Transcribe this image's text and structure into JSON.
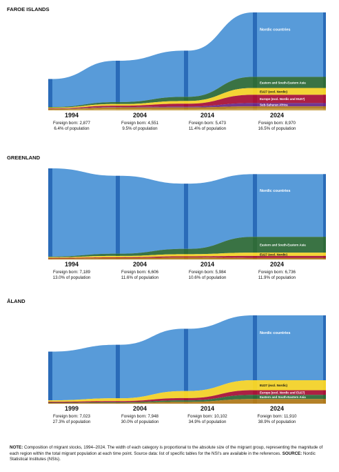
{
  "colors": {
    "nordic": "#4a92d6",
    "nordic_bar": "#2a6bb8",
    "asia": "#2f6b3a",
    "eu27": "#f2d22a",
    "europe": "#a8143a",
    "africa": "#6a2c8c",
    "other1": "#b07a1c",
    "other2": "#c9a24a"
  },
  "chart_data": [
    {
      "type": "sankey",
      "title": "FAROE ISLANDS",
      "periods": [
        {
          "year": "1994",
          "born": "Foreign born: 2,877",
          "pct": "6.4% of population"
        },
        {
          "year": "2004",
          "born": "Foreign born: 4,551",
          "pct": "9.5% of population"
        },
        {
          "year": "2014",
          "born": "Foreign born: 5,473",
          "pct": "11.4% of population"
        },
        {
          "year": "2024",
          "born": "Foreign born: 8,970",
          "pct": "16.5% of population"
        }
      ],
      "series": [
        {
          "name": "Nordic countries",
          "key": "nordic",
          "values": [
            2560,
            3790,
            4230,
            5900
          ]
        },
        {
          "name": "Eastern and South-Eastern Asia",
          "key": "asia",
          "values": [
            60,
            180,
            380,
            1020
          ]
        },
        {
          "name": "EU27 (excl. Nordic)",
          "key": "eu27",
          "values": [
            70,
            150,
            250,
            620
          ]
        },
        {
          "name": "Europe (excl. Nordic and EU27)",
          "key": "europe",
          "values": [
            40,
            120,
            260,
            760
          ]
        },
        {
          "name": "Sub-Saharan Africa",
          "key": "africa",
          "values": [
            20,
            40,
            80,
            300
          ]
        },
        {
          "name": "",
          "key": "other1",
          "values": [
            70,
            160,
            170,
            230
          ]
        },
        {
          "name": "",
          "key": "other2",
          "values": [
            57,
            111,
            103,
            140
          ]
        }
      ]
    },
    {
      "type": "sankey",
      "title": "GREENLAND",
      "periods": [
        {
          "year": "1994",
          "born": "Foreign born: 7,189",
          "pct": "13.0% of population"
        },
        {
          "year": "2004",
          "born": "Foreign born: 6,606",
          "pct": "11.6% of population"
        },
        {
          "year": "2014",
          "born": "Foreign born: 5,984",
          "pct": "10.6% of population"
        },
        {
          "year": "2024",
          "born": "Foreign born: 6,736",
          "pct": "11.9% of population"
        }
      ],
      "series": [
        {
          "name": "Nordic countries",
          "key": "nordic",
          "values": [
            6960,
            6150,
            5150,
            4950
          ]
        },
        {
          "name": "Eastern and South-Eastern Asia",
          "key": "asia",
          "values": [
            50,
            180,
            420,
            1250
          ]
        },
        {
          "name": "EU27 (excl. Nordic)",
          "key": "eu27",
          "values": [
            60,
            110,
            170,
            260
          ]
        },
        {
          "name": "",
          "key": "europe",
          "values": [
            40,
            60,
            90,
            160
          ]
        },
        {
          "name": "",
          "key": "other1",
          "values": [
            79,
            106,
            154,
            116
          ]
        }
      ]
    },
    {
      "type": "sankey",
      "title": "ÅLAND",
      "periods": [
        {
          "year": "1999",
          "born": "Foreign born: 7,023",
          "pct": "27.3% of population"
        },
        {
          "year": "2004",
          "born": "Foreign born: 7,948",
          "pct": "30.0% of population"
        },
        {
          "year": "2014",
          "born": "Foreign born: 10,102",
          "pct": "34.9% of population"
        },
        {
          "year": "2024",
          "born": "Foreign born: 11,910",
          "pct": "38.9% of population"
        }
      ],
      "series": [
        {
          "name": "Nordic countries",
          "key": "nordic",
          "values": [
            6570,
            7220,
            8400,
            8750
          ]
        },
        {
          "name": "EU27 (excl. Nordic)",
          "key": "eu27",
          "values": [
            200,
            380,
            950,
            1350
          ]
        },
        {
          "name": "Europe (excl. Nordic and EU27)",
          "key": "europe",
          "values": [
            110,
            150,
            300,
            620
          ]
        },
        {
          "name": "Eastern and South-Eastern Asia",
          "key": "asia",
          "values": [
            53,
            88,
            202,
            560
          ]
        },
        {
          "name": "",
          "key": "other1",
          "values": [
            90,
            110,
            250,
            630
          ]
        }
      ]
    }
  ],
  "note": {
    "label": "NOTE:",
    "text": " Composition of migrant stocks, 1994–2024. The width of each category is proportional to the absolute size of the migrant group, representing the magnitude of each region within the total migrant population at each time point. Source data: list of specific tables for the NSI's are available in the references. ",
    "source_label": "SOURCE:",
    "source_text": " Nordic Statistical Institutes (NSIs)."
  }
}
